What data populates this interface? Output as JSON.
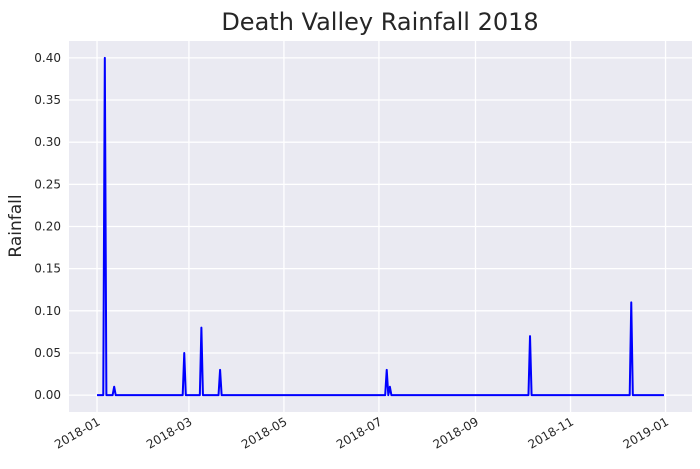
{
  "chart_data": {
    "type": "line",
    "title": "Death Valley Rainfall 2018",
    "xlabel": "",
    "ylabel": "Rainfall",
    "x_type": "date",
    "xlim": [
      "2017-12-14",
      "2019-01-18"
    ],
    "ylim": [
      -0.02,
      0.42
    ],
    "grid": true,
    "background": "#eaeaf2",
    "x_ticks": [
      {
        "date": "2018-01-01",
        "label": "2018-01"
      },
      {
        "date": "2018-03-01",
        "label": "2018-03"
      },
      {
        "date": "2018-05-01",
        "label": "2018-05"
      },
      {
        "date": "2018-07-01",
        "label": "2018-07"
      },
      {
        "date": "2018-09-01",
        "label": "2018-09"
      },
      {
        "date": "2018-11-01",
        "label": "2018-11"
      },
      {
        "date": "2019-01-01",
        "label": "2019-01"
      }
    ],
    "y_ticks": [
      {
        "value": 0.0,
        "label": "0.00"
      },
      {
        "value": 0.05,
        "label": "0.05"
      },
      {
        "value": 0.1,
        "label": "0.10"
      },
      {
        "value": 0.15,
        "label": "0.15"
      },
      {
        "value": 0.2,
        "label": "0.20"
      },
      {
        "value": 0.25,
        "label": "0.25"
      },
      {
        "value": 0.3,
        "label": "0.30"
      },
      {
        "value": 0.35,
        "label": "0.35"
      },
      {
        "value": 0.4,
        "label": "0.40"
      }
    ],
    "series": [
      {
        "color": "#0000ff",
        "points": [
          [
            "2018-01-01",
            0.0
          ],
          [
            "2018-01-04",
            0.0
          ],
          [
            "2018-01-05",
            0.0
          ],
          [
            "2018-01-06",
            0.4
          ],
          [
            "2018-01-07",
            0.0
          ],
          [
            "2018-01-11",
            0.0
          ],
          [
            "2018-01-12",
            0.01
          ],
          [
            "2018-01-13",
            0.0
          ],
          [
            "2018-02-25",
            0.0
          ],
          [
            "2018-02-26",
            0.05
          ],
          [
            "2018-02-27",
            0.0
          ],
          [
            "2018-03-08",
            0.0
          ],
          [
            "2018-03-09",
            0.08
          ],
          [
            "2018-03-10",
            0.0
          ],
          [
            "2018-03-20",
            0.0
          ],
          [
            "2018-03-21",
            0.03
          ],
          [
            "2018-03-22",
            0.0
          ],
          [
            "2018-07-05",
            0.0
          ],
          [
            "2018-07-06",
            0.03
          ],
          [
            "2018-07-07",
            0.0
          ],
          [
            "2018-07-08",
            0.01
          ],
          [
            "2018-07-09",
            0.0
          ],
          [
            "2018-10-05",
            0.0
          ],
          [
            "2018-10-06",
            0.07
          ],
          [
            "2018-10-07",
            0.0
          ],
          [
            "2018-12-09",
            0.0
          ],
          [
            "2018-12-10",
            0.11
          ],
          [
            "2018-12-11",
            0.0
          ],
          [
            "2018-12-31",
            0.0
          ]
        ]
      }
    ]
  }
}
